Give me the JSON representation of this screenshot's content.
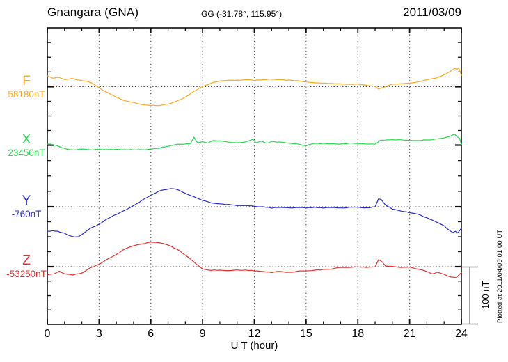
{
  "header": {
    "station_title": "Gnangara (GNA)",
    "coordinates": "GG (-31.78°, 115.95°)",
    "date": "2011/03/09"
  },
  "x_axis": {
    "label": "U T (hour)",
    "tick_hours": [
      0,
      3,
      6,
      9,
      12,
      15,
      18,
      21,
      24
    ],
    "min_hour": 0,
    "max_hour": 24
  },
  "scale_bar_label": "100 nT",
  "plotted_note": "Plotted at 2011/04/09 01:00 UT",
  "chart_data": {
    "type": "line",
    "title": "Gnangara (GNA) magnetogram for 2011/03/09",
    "xlabel": "U T (hour)",
    "x_range": [
      0,
      24
    ],
    "x_major_tick_step": 3,
    "x_minor_tick_step": 1,
    "grid": "dotted vertical lines every 3 hours; dotted horizontal line at each component baseline",
    "scale_division_nT": 100,
    "y_minor_tick_nT": 25,
    "series": [
      {
        "name": "F",
        "baseline_value": "58180nT",
        "color": "#FFA81E",
        "unit": "nT offset from baseline",
        "points": [
          [
            0,
            18
          ],
          [
            0.3,
            15
          ],
          [
            0.7,
            16
          ],
          [
            1,
            12
          ],
          [
            1.4,
            14
          ],
          [
            1.8,
            11
          ],
          [
            2.2,
            10
          ],
          [
            2.6,
            6
          ],
          [
            3,
            -2
          ],
          [
            3.5,
            -10
          ],
          [
            4,
            -18
          ],
          [
            4.5,
            -24
          ],
          [
            5,
            -27
          ],
          [
            5.5,
            -31
          ],
          [
            6,
            -32
          ],
          [
            6.5,
            -32
          ],
          [
            7,
            -30
          ],
          [
            7.5,
            -25
          ],
          [
            8,
            -18
          ],
          [
            8.5,
            -8
          ],
          [
            9,
            0
          ],
          [
            9.5,
            6
          ],
          [
            10,
            10
          ],
          [
            10.5,
            11
          ],
          [
            11,
            11
          ],
          [
            11.5,
            12
          ],
          [
            12,
            11
          ],
          [
            12.5,
            12
          ],
          [
            13,
            13
          ],
          [
            13.5,
            12
          ],
          [
            14,
            11
          ],
          [
            14.5,
            10
          ],
          [
            15,
            8
          ],
          [
            15.5,
            7
          ],
          [
            16,
            6
          ],
          [
            16.5,
            5
          ],
          [
            17,
            5
          ],
          [
            17.5,
            4
          ],
          [
            18,
            4
          ],
          [
            18.5,
            2
          ],
          [
            19,
            1
          ],
          [
            19.2,
            -4
          ],
          [
            19.5,
            -1
          ],
          [
            20,
            4
          ],
          [
            20.5,
            5
          ],
          [
            21,
            6
          ],
          [
            21.5,
            8
          ],
          [
            22,
            12
          ],
          [
            22.5,
            15
          ],
          [
            23,
            20
          ],
          [
            23.3,
            25
          ],
          [
            23.6,
            32
          ],
          [
            23.75,
            30
          ],
          [
            23.85,
            32
          ],
          [
            24,
            20
          ]
        ]
      },
      {
        "name": "X",
        "baseline_value": "23450nT",
        "color": "#26DB4F",
        "unit": "nT offset from baseline",
        "points": [
          [
            0,
            2
          ],
          [
            0.5,
            0
          ],
          [
            1,
            -6
          ],
          [
            1.5,
            -8
          ],
          [
            2,
            -7
          ],
          [
            2.5,
            -8
          ],
          [
            3,
            -7
          ],
          [
            3.5,
            -8
          ],
          [
            4,
            -7
          ],
          [
            4.5,
            -8
          ],
          [
            5,
            -8
          ],
          [
            5.5,
            -8
          ],
          [
            6,
            -7
          ],
          [
            6.5,
            -5
          ],
          [
            7,
            -2
          ],
          [
            7.5,
            1
          ],
          [
            8,
            2
          ],
          [
            8.3,
            3
          ],
          [
            8.5,
            14
          ],
          [
            8.7,
            4
          ],
          [
            9,
            6
          ],
          [
            9.3,
            3
          ],
          [
            9.6,
            8
          ],
          [
            10,
            7
          ],
          [
            10.5,
            5
          ],
          [
            11,
            4
          ],
          [
            11.5,
            5
          ],
          [
            11.9,
            10
          ],
          [
            12.1,
            4
          ],
          [
            12.4,
            7
          ],
          [
            12.7,
            3
          ],
          [
            13,
            6
          ],
          [
            13.5,
            5
          ],
          [
            14,
            3
          ],
          [
            14.5,
            2
          ],
          [
            15,
            -1
          ],
          [
            15.3,
            2
          ],
          [
            15.6,
            3
          ],
          [
            16,
            3
          ],
          [
            16.5,
            2
          ],
          [
            17,
            2
          ],
          [
            17.5,
            3
          ],
          [
            18,
            3
          ],
          [
            18.5,
            2
          ],
          [
            19,
            2
          ],
          [
            19.3,
            8
          ],
          [
            19.6,
            9
          ],
          [
            20,
            9
          ],
          [
            20.5,
            9
          ],
          [
            21,
            8
          ],
          [
            21.5,
            8
          ],
          [
            22,
            9
          ],
          [
            22.5,
            10
          ],
          [
            23,
            12
          ],
          [
            23.4,
            16
          ],
          [
            23.6,
            19
          ],
          [
            23.75,
            14
          ],
          [
            23.9,
            12
          ],
          [
            24,
            1
          ]
        ]
      },
      {
        "name": "Y",
        "baseline_value": "-760nT",
        "color": "#2B2BCC",
        "unit": "nT offset from baseline",
        "points": [
          [
            0,
            -42
          ],
          [
            0.3,
            -41
          ],
          [
            0.6,
            -42
          ],
          [
            1,
            -45
          ],
          [
            1.3,
            -50
          ],
          [
            1.6,
            -52
          ],
          [
            1.8,
            -51
          ],
          [
            2,
            -48
          ],
          [
            2.5,
            -37
          ],
          [
            3,
            -30
          ],
          [
            3.5,
            -20
          ],
          [
            4,
            -13
          ],
          [
            4.5,
            -6
          ],
          [
            5,
            2
          ],
          [
            5.5,
            11
          ],
          [
            6,
            20
          ],
          [
            6.3,
            24
          ],
          [
            6.6,
            28
          ],
          [
            7,
            30
          ],
          [
            7.3,
            31
          ],
          [
            7.6,
            29
          ],
          [
            8,
            23
          ],
          [
            8.5,
            17
          ],
          [
            9,
            11
          ],
          [
            9.5,
            7
          ],
          [
            10,
            5
          ],
          [
            10.5,
            4
          ],
          [
            11,
            2
          ],
          [
            11.5,
            2
          ],
          [
            12,
            1
          ],
          [
            12.5,
            0
          ],
          [
            13,
            -2
          ],
          [
            13.5,
            -1
          ],
          [
            14,
            -2
          ],
          [
            14.5,
            -1
          ],
          [
            15,
            -2
          ],
          [
            15.5,
            -1
          ],
          [
            16,
            -2
          ],
          [
            16.5,
            -1
          ],
          [
            17,
            -2
          ],
          [
            17.5,
            -1
          ],
          [
            18,
            -1
          ],
          [
            18.5,
            -2
          ],
          [
            19,
            0
          ],
          [
            19.2,
            14
          ],
          [
            19.35,
            12
          ],
          [
            19.6,
            3
          ],
          [
            20,
            -4
          ],
          [
            20.5,
            -7
          ],
          [
            21,
            -10
          ],
          [
            21.5,
            -13
          ],
          [
            22,
            -19
          ],
          [
            22.5,
            -25
          ],
          [
            23,
            -33
          ],
          [
            23.3,
            -40
          ],
          [
            23.5,
            -44
          ],
          [
            23.65,
            -42
          ],
          [
            23.8,
            -45
          ],
          [
            24,
            -36
          ]
        ]
      },
      {
        "name": "Z",
        "baseline_value": "-53250nT",
        "color": "#E62E2E",
        "unit": "nT offset from baseline",
        "points": [
          [
            0,
            -14
          ],
          [
            0.4,
            -12
          ],
          [
            0.7,
            -8
          ],
          [
            1,
            -12
          ],
          [
            1.5,
            -14
          ],
          [
            2,
            -11
          ],
          [
            2.5,
            -2
          ],
          [
            3,
            4
          ],
          [
            3.5,
            13
          ],
          [
            4,
            21
          ],
          [
            4.5,
            30
          ],
          [
            5,
            36
          ],
          [
            5.5,
            39
          ],
          [
            6,
            42
          ],
          [
            6.3,
            42
          ],
          [
            6.6,
            40
          ],
          [
            7,
            37
          ],
          [
            7.5,
            30
          ],
          [
            8,
            20
          ],
          [
            8.5,
            8
          ],
          [
            9,
            -4
          ],
          [
            9.5,
            -6
          ],
          [
            10,
            -6
          ],
          [
            10.5,
            -7
          ],
          [
            11,
            -6
          ],
          [
            11.5,
            -6
          ],
          [
            12,
            -7
          ],
          [
            12.5,
            -8
          ],
          [
            13,
            -10
          ],
          [
            13.5,
            -8
          ],
          [
            14,
            -10
          ],
          [
            14.5,
            -8
          ],
          [
            15,
            -7
          ],
          [
            15.5,
            -6
          ],
          [
            16,
            -5
          ],
          [
            16.5,
            -4
          ],
          [
            17,
            -1
          ],
          [
            17.5,
            -1
          ],
          [
            18,
            0
          ],
          [
            18.5,
            -1
          ],
          [
            19,
            0
          ],
          [
            19.2,
            12
          ],
          [
            19.35,
            10
          ],
          [
            19.6,
            1
          ],
          [
            20,
            0
          ],
          [
            20.5,
            -1
          ],
          [
            21,
            -1
          ],
          [
            21.5,
            -4
          ],
          [
            22,
            -8
          ],
          [
            22.3,
            -12
          ],
          [
            22.6,
            -10
          ],
          [
            23,
            -13
          ],
          [
            23.4,
            -18
          ],
          [
            23.7,
            -19
          ],
          [
            24,
            -10
          ]
        ]
      }
    ]
  }
}
